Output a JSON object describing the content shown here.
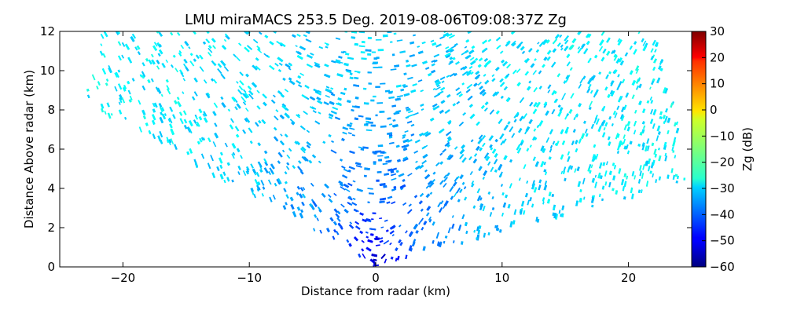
{
  "chart_data": {
    "type": "heatmap",
    "title": "LMU miraMACS 253.5 Deg. 2019-08-06T09:08:37Z  Zg",
    "xlabel": "Distance from radar (km)",
    "ylabel": "Distance Above radar  (km)",
    "colorbar_label": "Zg (dB)",
    "xlim": [
      -25,
      25
    ],
    "ylim": [
      0,
      12
    ],
    "clim": [
      -60,
      30
    ],
    "x_ticks": [
      -20,
      -10,
      0,
      10,
      20
    ],
    "y_ticks": [
      0,
      2,
      4,
      6,
      8,
      10,
      12
    ],
    "colorbar_ticks": [
      -60,
      -50,
      -40,
      -30,
      -20,
      -10,
      0,
      10,
      20,
      30
    ],
    "colormap": "jet",
    "scan": {
      "elevation_min_deg": 10,
      "elevation_max_deg": 160,
      "max_range_km": 25,
      "top_km": 12
    },
    "field_profile": [
      {
        "range_km": 0.5,
        "zg_db": -52
      },
      {
        "range_km": 1.5,
        "zg_db": -46
      },
      {
        "range_km": 3,
        "zg_db": -41
      },
      {
        "range_km": 5,
        "zg_db": -37
      },
      {
        "range_km": 8,
        "zg_db": -33
      },
      {
        "range_km": 12,
        "zg_db": -30
      },
      {
        "range_km": 18,
        "zg_db": -28
      },
      {
        "range_km": 25,
        "zg_db": -27
      }
    ]
  }
}
